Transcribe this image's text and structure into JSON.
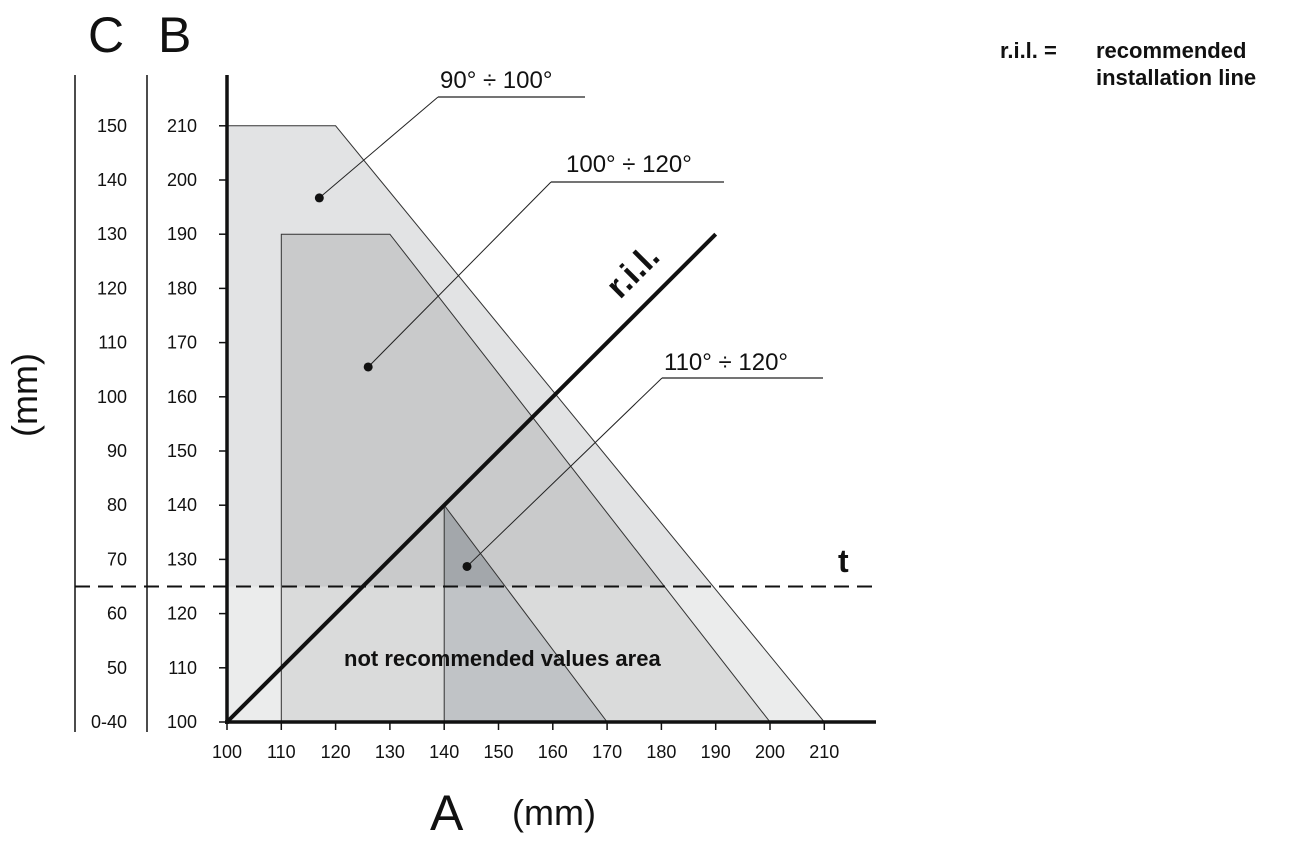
{
  "chart_data": {
    "type": "area",
    "x_axis": {
      "letter": "A",
      "unit": "(mm)",
      "ticks": [
        "100",
        "110",
        "120",
        "130",
        "140",
        "150",
        "160",
        "170",
        "180",
        "190",
        "200",
        "210"
      ],
      "range": [
        100,
        220
      ]
    },
    "y_axis_B": {
      "letter": "B",
      "ticks": [
        "100",
        "110",
        "120",
        "130",
        "140",
        "150",
        "160",
        "170",
        "180",
        "190",
        "200",
        "210"
      ],
      "range": [
        100,
        215
      ]
    },
    "y_axis_C": {
      "letter": "C",
      "ticks": [
        "0-40",
        "50",
        "60",
        "70",
        "80",
        "90",
        "100",
        "110",
        "120",
        "130",
        "140",
        "150"
      ]
    },
    "y_unit": "(mm)",
    "zones": [
      {
        "label": "90° ÷ 100°",
        "color": "#e2e3e4",
        "polygon": [
          [
            100,
            100
          ],
          [
            100,
            210
          ],
          [
            120,
            210
          ],
          [
            210,
            100
          ]
        ]
      },
      {
        "label": "100° ÷ 120°",
        "color": "#c9cacb",
        "polygon": [
          [
            110,
            100
          ],
          [
            110,
            190
          ],
          [
            130,
            190
          ],
          [
            200,
            100
          ]
        ]
      },
      {
        "label": "110° ÷ 120°",
        "color": "#a3a7ab",
        "polygon": [
          [
            140,
            100
          ],
          [
            140,
            140
          ],
          [
            170,
            100
          ]
        ]
      }
    ],
    "threshold": {
      "label": "t",
      "y": 125
    },
    "not_recommended_label": "not recommended values area",
    "ril_line": {
      "label": "r.i.l.",
      "from": [
        100,
        100
      ],
      "to": [
        190,
        190
      ]
    }
  },
  "legend": {
    "key": "r.i.l. =",
    "line1": "recommended",
    "line2": "installation line"
  }
}
